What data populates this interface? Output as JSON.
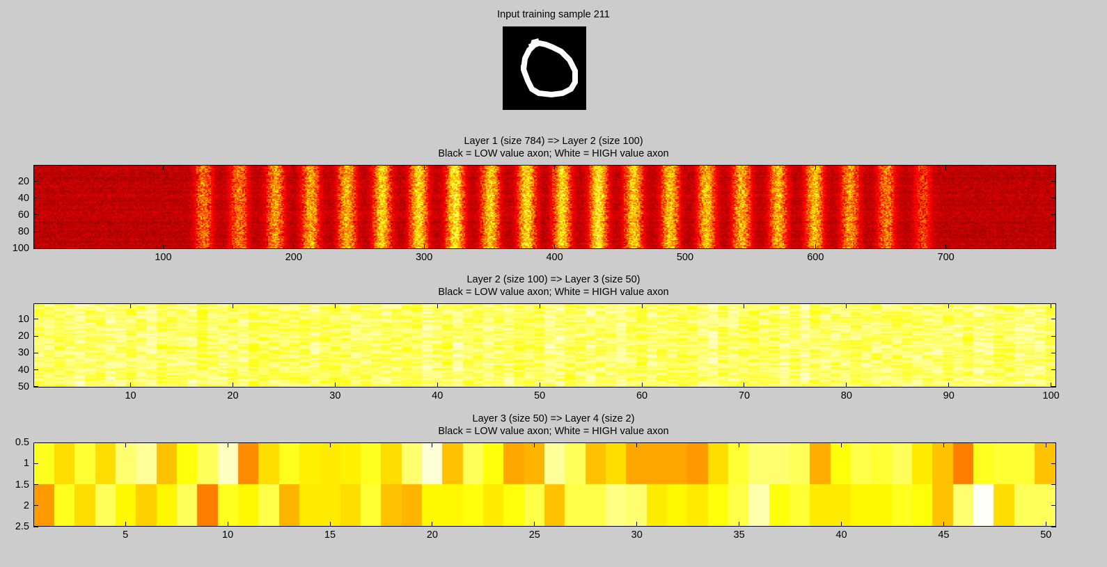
{
  "input_sample": {
    "title": "Input training sample 211",
    "digit": "0"
  },
  "chart_data": [
    {
      "type": "heatmap",
      "colormap": "hot",
      "title": "Layer 1 (size 784) => Layer 2 (size 100)",
      "subtitle": "Black = LOW value axon; White = HIGH value axon",
      "columns": 784,
      "rows": 100,
      "xlim": [
        0.5,
        784.5
      ],
      "ylim": [
        0.5,
        100.5
      ],
      "xticks": [
        100,
        200,
        300,
        400,
        500,
        600,
        700
      ],
      "yticks": [
        20,
        40,
        60,
        80,
        100
      ],
      "column_profile": {
        "background": 0.28,
        "bright_column_centers": [
          131,
          158,
          186,
          213,
          241,
          268,
          296,
          324,
          351,
          379,
          406,
          434,
          461,
          489,
          517,
          544,
          572,
          600,
          627,
          655,
          683
        ],
        "bright_column_peaks": [
          0.55,
          0.55,
          0.6,
          0.62,
          0.66,
          0.7,
          0.72,
          0.76,
          0.7,
          0.72,
          0.72,
          0.76,
          0.7,
          0.68,
          0.66,
          0.66,
          0.64,
          0.66,
          0.6,
          0.56,
          0.45
        ]
      }
    },
    {
      "type": "heatmap",
      "colormap": "hot",
      "title": "Layer 2 (size 100) => Layer 3 (size 50)",
      "subtitle": "Black = LOW value axon; White = HIGH value axon",
      "columns": 100,
      "rows": 50,
      "xlim": [
        0.5,
        100.5
      ],
      "ylim": [
        0.5,
        50.5
      ],
      "xticks": [
        10,
        20,
        30,
        40,
        50,
        60,
        70,
        80,
        90,
        100
      ],
      "yticks": [
        10,
        20,
        30,
        40,
        50
      ],
      "value_range": [
        0.78,
        0.93
      ]
    },
    {
      "type": "heatmap",
      "colormap": "hot",
      "title": "Layer 3 (size 50) => Layer 4 (size 2)",
      "subtitle": "Black = LOW value axon; White = HIGH value axon",
      "columns": 50,
      "rows": 2,
      "xlim": [
        0.5,
        50.5
      ],
      "ylim": [
        0.5,
        2.5
      ],
      "xticks": [
        5,
        10,
        15,
        20,
        25,
        30,
        35,
        40,
        45,
        50
      ],
      "yticks": [
        0.5,
        1,
        1.5,
        2,
        2.5
      ],
      "values": [
        [
          0.78,
          0.7,
          0.8,
          0.7,
          0.86,
          0.9,
          0.66,
          0.76,
          0.84,
          0.94,
          0.58,
          0.7,
          0.78,
          0.73,
          0.72,
          0.73,
          0.78,
          0.7,
          0.86,
          0.96,
          0.66,
          0.84,
          0.76,
          0.62,
          0.64,
          0.9,
          0.84,
          0.66,
          0.7,
          0.62,
          0.62,
          0.62,
          0.6,
          0.7,
          0.8,
          0.86,
          0.86,
          0.84,
          0.63,
          0.76,
          0.82,
          0.8,
          0.84,
          0.72,
          0.66,
          0.56,
          0.78,
          0.8,
          0.8,
          0.66
        ],
        [
          0.6,
          0.78,
          0.7,
          0.84,
          0.74,
          0.68,
          0.74,
          0.84,
          0.56,
          0.78,
          0.74,
          0.82,
          0.64,
          0.72,
          0.72,
          0.7,
          0.8,
          0.66,
          0.64,
          0.74,
          0.74,
          0.76,
          0.72,
          0.76,
          0.82,
          0.66,
          0.82,
          0.82,
          0.88,
          0.86,
          0.72,
          0.74,
          0.72,
          0.76,
          0.82,
          0.92,
          0.76,
          0.8,
          0.72,
          0.72,
          0.74,
          0.74,
          0.78,
          0.76,
          0.66,
          0.86,
          0.99,
          0.7,
          0.84,
          0.84
        ]
      ]
    }
  ]
}
